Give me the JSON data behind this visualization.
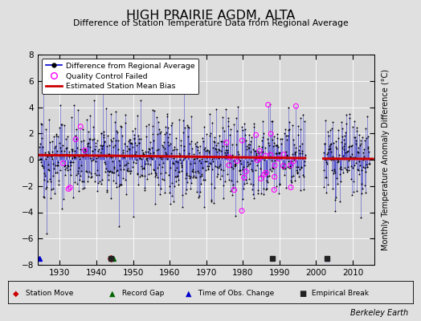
{
  "title": "HIGH PRAIRIE AGDM, ALTA",
  "subtitle": "Difference of Station Temperature Data from Regional Average",
  "ylabel": "Monthly Temperature Anomaly Difference (°C)",
  "xlabel_bottom": "Berkeley Earth",
  "background_color": "#e0e0e0",
  "plot_bg_color": "#d8d8d8",
  "ylim": [
    -8,
    8
  ],
  "xlim": [
    1924,
    2016
  ],
  "xticks": [
    1930,
    1940,
    1950,
    1960,
    1970,
    1980,
    1990,
    2000,
    2010
  ],
  "yticks": [
    -8,
    -6,
    -4,
    -2,
    0,
    2,
    4,
    6,
    8
  ],
  "seed": 42,
  "line_color": "#0000cc",
  "dot_color": "#000000",
  "bias_color": "#cc0000",
  "qc_color": "#ff00ff",
  "stem_color": "#3333cc",
  "marker_station_move_color": "#cc0000",
  "marker_record_gap_color": "#006600",
  "marker_time_obs_color": "#0000cc",
  "marker_empirical_color": "#222222",
  "station_moves": [
    1944.0
  ],
  "record_gaps": [
    1944.5
  ],
  "time_obs_changes": [
    1924.5,
    2003.0
  ],
  "empirical_breaks": [
    1944.0,
    1988.0,
    2003.0
  ]
}
